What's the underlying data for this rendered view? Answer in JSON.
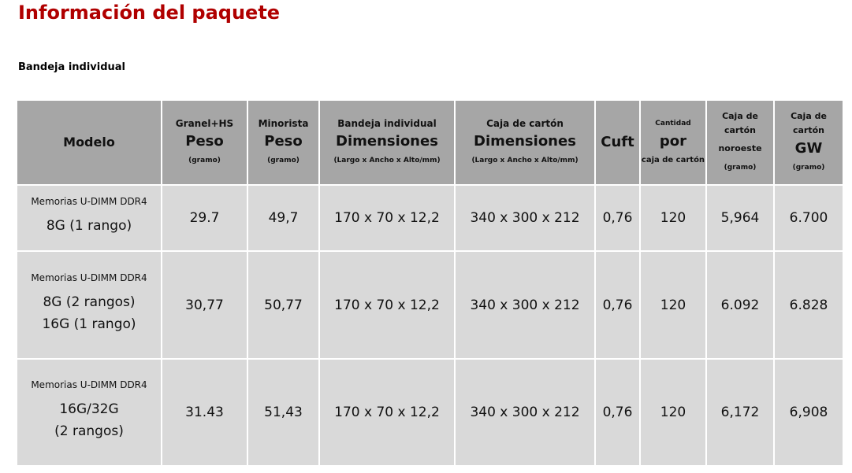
{
  "title": "Información del paquete",
  "subtitle": "Bandeja individual",
  "colors": {
    "title": "#b00000",
    "header_bg": "#a6a6a6",
    "cell_bg": "#d9d9d9"
  },
  "headers": [
    {
      "top": "",
      "main": "Modelo",
      "bottom": ""
    },
    {
      "top": "Granel+HS",
      "main": "Peso",
      "bottom": "(gramo)"
    },
    {
      "top": "Minorista",
      "main": "Peso",
      "bottom": "(gramo)"
    },
    {
      "top": "Bandeja individual",
      "main": "Dimensiones",
      "bottom": "(Largo x Ancho x Alto/mm)"
    },
    {
      "top": "Caja de cartón",
      "main": "Dimensiones",
      "bottom": "(Largo x Ancho x Alto/mm)"
    },
    {
      "top": "",
      "main": "Cuft",
      "bottom": ""
    },
    {
      "top": "Cantidad",
      "main": "por",
      "bottom": "caja de cartón"
    },
    {
      "top": "Caja de cartón",
      "main": "noroeste",
      "bottom": "(gramo)"
    },
    {
      "top": "Caja de cartón",
      "main": "GW",
      "bottom": "(gramo)"
    }
  ],
  "rows": [
    {
      "model": [
        "Memorias U-DIMM DDR4",
        "8G (1 rango)"
      ],
      "values": [
        "29.7",
        "49,7",
        "170 x 70 x 12,2",
        "340 x 300 x 212",
        "0,76",
        "120",
        "5,964",
        "6.700"
      ]
    },
    {
      "model": [
        "Memorias U-DIMM DDR4",
        "8G (2 rangos)",
        "16G (1 rango)"
      ],
      "values": [
        "30,77",
        "50,77",
        "170 x 70 x 12,2",
        "340 x 300 x 212",
        "0,76",
        "120",
        "6.092",
        "6.828"
      ]
    },
    {
      "model": [
        "Memorias U-DIMM DDR4",
        "16G/32G",
        "(2 rangos)"
      ],
      "values": [
        "31.43",
        "51,43",
        "170 x 70 x 12,2",
        "340 x 300 x 212",
        "0,76",
        "120",
        "6,172",
        "6,908"
      ]
    }
  ]
}
